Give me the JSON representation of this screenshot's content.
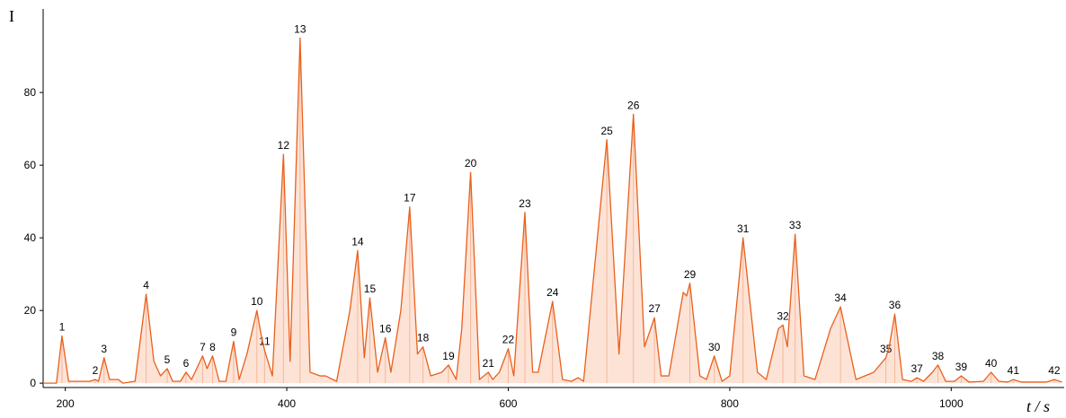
{
  "chart_data": {
    "type": "chromatogram",
    "y_label": "I",
    "x_label": "t / s",
    "color": "#e8601c",
    "fill": "#fde3d6",
    "xlim": [
      180,
      1102
    ],
    "ylim": [
      -1.2,
      103
    ],
    "xticks": [
      200,
      400,
      600,
      800,
      1000
    ],
    "yticks": [
      0,
      20,
      40,
      60,
      80
    ],
    "x": [
      180,
      192,
      197,
      203,
      222,
      227,
      230,
      235,
      240,
      248,
      252,
      263,
      273,
      280,
      286,
      292,
      297,
      304,
      309,
      314,
      324,
      328,
      333,
      339,
      345,
      352,
      357,
      364,
      373,
      377,
      380,
      387,
      397,
      403,
      412,
      421,
      430,
      435,
      445,
      457,
      464,
      470,
      475,
      482,
      489,
      494,
      503,
      511,
      518,
      523,
      530,
      540,
      546,
      553,
      558,
      566,
      574,
      582,
      586,
      592,
      600,
      605,
      615,
      622,
      627,
      640,
      649,
      657,
      663,
      668,
      689,
      700,
      713,
      723,
      732,
      738,
      745,
      758,
      761,
      764,
      773,
      779,
      786,
      793,
      800,
      812,
      825,
      833,
      844,
      848,
      852,
      859,
      867,
      877,
      891,
      900,
      914,
      930,
      941,
      944,
      949,
      956,
      964,
      969,
      975,
      983,
      988,
      995,
      1003,
      1009,
      1016,
      1029,
      1036,
      1043,
      1051,
      1056,
      1063,
      1086,
      1093,
      1100
    ],
    "values": [
      0,
      0,
      13,
      0.5,
      0.5,
      1,
      0.5,
      7,
      1,
      1,
      0,
      0.5,
      24.5,
      6,
      2,
      4,
      0.5,
      0.5,
      3,
      1,
      7.5,
      4,
      7.5,
      0.5,
      0.5,
      11.5,
      1,
      8,
      20,
      13,
      9,
      2,
      63,
      6,
      95,
      3,
      2,
      2,
      0.5,
      20,
      36.5,
      7,
      23.5,
      3,
      12.5,
      3,
      20,
      48.5,
      8,
      10,
      2,
      3,
      5,
      1,
      15,
      58,
      1,
      3,
      1,
      3,
      9.5,
      2,
      47,
      3,
      3,
      22.5,
      1,
      0.5,
      1.5,
      0.5,
      67,
      8,
      74,
      10,
      18,
      2,
      2,
      25,
      24,
      27.5,
      2,
      1,
      7.5,
      0.5,
      2,
      40,
      3,
      1,
      15,
      16,
      10,
      41,
      2,
      1,
      15,
      21,
      1,
      3,
      7,
      10,
      19,
      1,
      0.5,
      1.5,
      0.5,
      3,
      5,
      0.5,
      0.5,
      2,
      0.3,
      0.5,
      3,
      0.5,
      0.3,
      1,
      0.3,
      0.3,
      1,
      0.3
    ],
    "point_labels": [
      null,
      null,
      "1",
      null,
      null,
      "2",
      null,
      "3",
      null,
      null,
      null,
      null,
      "4",
      null,
      null,
      "5",
      null,
      null,
      "6",
      null,
      "7",
      null,
      "8",
      null,
      null,
      "9",
      null,
      null,
      "10",
      null,
      "11",
      null,
      "12",
      null,
      "13",
      null,
      null,
      null,
      null,
      null,
      "14",
      null,
      "15",
      null,
      "16",
      null,
      null,
      "17",
      null,
      "18",
      null,
      null,
      "19",
      null,
      null,
      "20",
      null,
      "21",
      null,
      null,
      "22",
      null,
      "23",
      null,
      null,
      "24",
      null,
      null,
      null,
      null,
      "25",
      null,
      "26",
      null,
      "27",
      null,
      null,
      null,
      null,
      "29",
      null,
      null,
      "30",
      null,
      null,
      "31",
      null,
      null,
      null,
      "32",
      null,
      "33",
      null,
      null,
      null,
      "34",
      null,
      null,
      "35",
      null,
      "36",
      null,
      null,
      "37",
      null,
      null,
      "38",
      null,
      null,
      "39",
      null,
      null,
      "40",
      null,
      null,
      "41",
      null,
      null,
      "42",
      null
    ]
  }
}
